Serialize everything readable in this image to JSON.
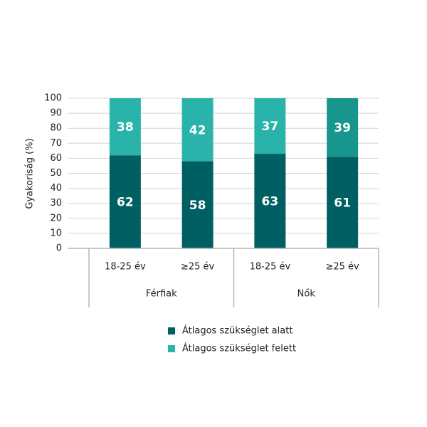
{
  "chart_data": {
    "type": "stacked_bar",
    "ylabel": "Gyakoriság (%)",
    "categories": [
      "18-25 év",
      "≥25 év",
      "18-25 év",
      "≥25 év"
    ],
    "groups": [
      "Férfiak",
      "Nők"
    ],
    "series": [
      {
        "name": "Átlagos szükséglet alatt",
        "color": "#005f63",
        "values": [
          62,
          58,
          63,
          61
        ]
      },
      {
        "name": "Átlagos szükséglet felett",
        "color": "#2ab3aa",
        "colors": [
          "#2ab3aa",
          "#2ab3aa",
          "#2ab3aa",
          "#16968c"
        ],
        "values": [
          38,
          42,
          37,
          39
        ]
      }
    ],
    "ylim": [
      0,
      100
    ],
    "yticks": [
      0,
      10,
      20,
      30,
      40,
      50,
      60,
      70,
      80,
      90,
      100
    ],
    "grid": true
  }
}
